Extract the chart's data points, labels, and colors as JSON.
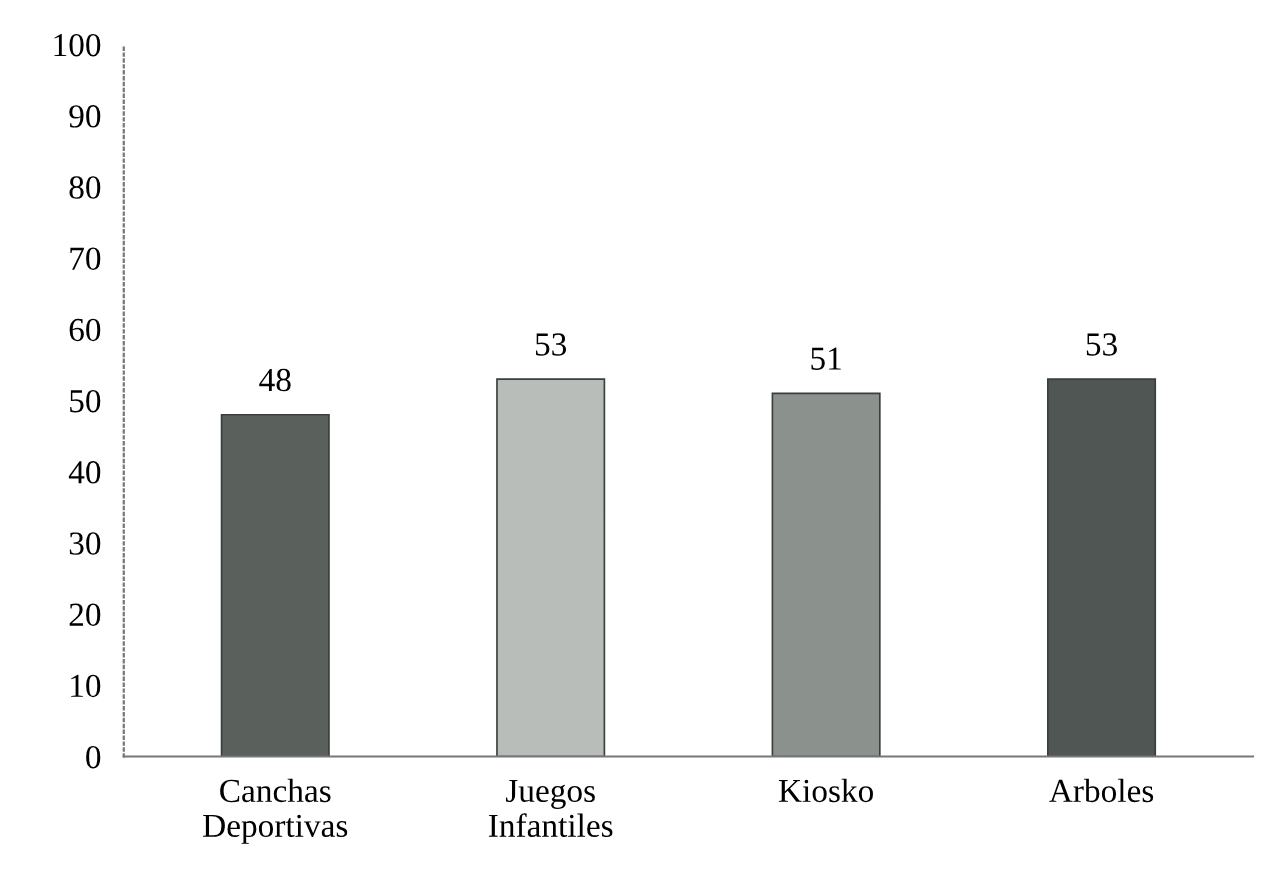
{
  "chart_data": {
    "type": "bar",
    "categories": [
      "Canchas\nDeportivas",
      "Juegos\nInfantiles",
      "Kiosko",
      "Arboles"
    ],
    "values": [
      48,
      53,
      51,
      53
    ],
    "colors": [
      "#5a605c",
      "#b8bdb9",
      "#8b928d",
      "#4f5653"
    ],
    "ylim": [
      0,
      100
    ],
    "yticks": [
      0,
      10,
      20,
      30,
      40,
      50,
      60,
      70,
      80,
      90,
      100
    ],
    "grid": false,
    "data_labels": true,
    "legend": false
  }
}
